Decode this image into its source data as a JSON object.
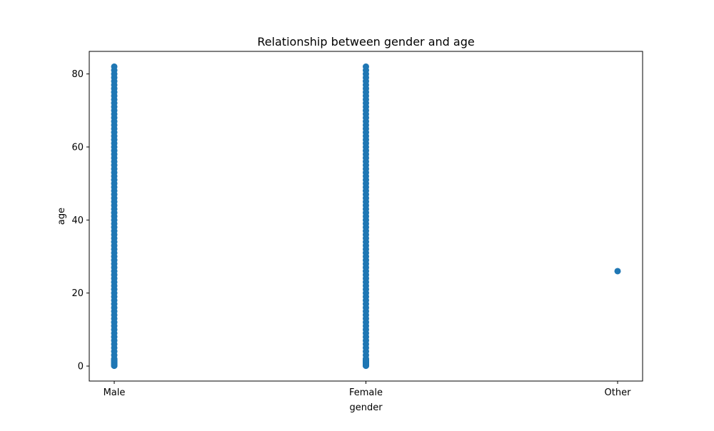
{
  "chart_data": {
    "type": "scatter",
    "title": "Relationship between gender and age",
    "xlabel": "gender",
    "ylabel": "age",
    "categories": [
      "Male",
      "Female",
      "Other"
    ],
    "ylim": [
      -4.1,
      86.18
    ],
    "yticks": [
      0,
      20,
      40,
      60,
      80
    ],
    "ytick_labels": [
      "0",
      "20",
      "40",
      "60",
      "80"
    ],
    "grid": false,
    "marker_color": "#1f77b4",
    "series": [
      {
        "category": "Male",
        "y": [
          0.08,
          0.16,
          0.24,
          0.32,
          0.4,
          0.48,
          0.56,
          0.64,
          0.72,
          0.8,
          0.88,
          1,
          1.08,
          1.16,
          1.24,
          1.32,
          1.4,
          1.48,
          1.56,
          1.64,
          1.72,
          1.8,
          1.88,
          2,
          3,
          4,
          5,
          6,
          7,
          8,
          9,
          10,
          11,
          12,
          13,
          14,
          15,
          16,
          17,
          18,
          19,
          20,
          21,
          22,
          23,
          24,
          25,
          26,
          27,
          28,
          29,
          30,
          31,
          32,
          33,
          34,
          35,
          36,
          37,
          38,
          39,
          40,
          41,
          42,
          43,
          44,
          45,
          46,
          47,
          48,
          49,
          50,
          51,
          52,
          53,
          54,
          55,
          56,
          57,
          58,
          59,
          60,
          61,
          62,
          63,
          64,
          65,
          66,
          67,
          68,
          69,
          70,
          71,
          72,
          73,
          74,
          75,
          76,
          77,
          78,
          79,
          80,
          81,
          82
        ]
      },
      {
        "category": "Female",
        "y": [
          0.08,
          0.16,
          0.24,
          0.32,
          0.4,
          0.48,
          0.56,
          0.64,
          0.72,
          0.8,
          0.88,
          1,
          1.08,
          1.16,
          1.24,
          1.32,
          1.4,
          1.48,
          1.56,
          1.64,
          1.72,
          1.8,
          1.88,
          2,
          3,
          4,
          5,
          6,
          7,
          8,
          9,
          10,
          11,
          12,
          13,
          14,
          15,
          16,
          17,
          18,
          19,
          20,
          21,
          22,
          23,
          24,
          25,
          26,
          27,
          28,
          29,
          30,
          31,
          32,
          33,
          34,
          35,
          36,
          37,
          38,
          39,
          40,
          41,
          42,
          43,
          44,
          45,
          46,
          47,
          48,
          49,
          50,
          51,
          52,
          53,
          54,
          55,
          56,
          57,
          58,
          59,
          60,
          61,
          62,
          63,
          64,
          65,
          66,
          67,
          68,
          69,
          70,
          71,
          72,
          73,
          74,
          75,
          76,
          77,
          78,
          79,
          80,
          81,
          82
        ]
      },
      {
        "category": "Other",
        "y": [
          26
        ]
      }
    ]
  }
}
